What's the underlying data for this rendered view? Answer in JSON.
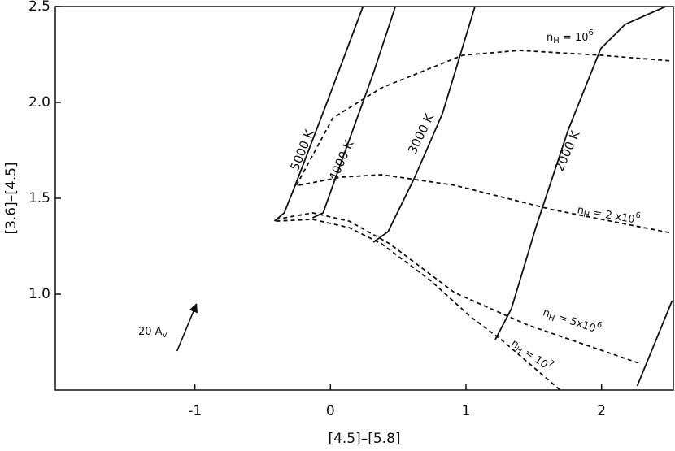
{
  "chart_data": {
    "type": "line",
    "x_label": "[4.5]–[5.8]",
    "y_label": "[3.6]–[4.5]",
    "xlim": [
      -2.03,
      2.53
    ],
    "ylim": [
      0.5,
      2.5
    ],
    "xticks": [
      -1,
      0,
      1,
      2
    ],
    "yticks": [
      {
        "value": 1,
        "label": "1.0"
      },
      1.5,
      {
        "value": 2,
        "label": "2.0"
      },
      2.5
    ],
    "series": [
      {
        "name": "5000 K",
        "color": "#111111",
        "dashed": false,
        "x": [
          -0.413,
          -0.341,
          -0.269,
          -0.012,
          0.24
        ],
        "values": [
          1.381,
          1.424,
          1.551,
          2.025,
          2.5
        ]
      },
      {
        "name": "4000 K",
        "color": "#111111",
        "dashed": false,
        "x": [
          -0.132,
          -0.054,
          0.078,
          0.317,
          0.479
        ],
        "values": [
          1.398,
          1.424,
          1.686,
          2.153,
          2.5
        ]
      },
      {
        "name": "3000 K",
        "color": "#111111",
        "dashed": false,
        "x": [
          0.317,
          0.425,
          0.617,
          0.826,
          1.066
        ],
        "values": [
          1.271,
          1.326,
          1.602,
          1.941,
          2.5
        ]
      },
      {
        "name": "2000 K",
        "color": "#111111",
        "dashed": false,
        "x": [
          1.216,
          1.335,
          1.515,
          1.754,
          1.994,
          2.174,
          2.473
        ],
        "values": [
          0.763,
          0.924,
          1.347,
          1.856,
          2.28,
          2.407,
          2.5
        ]
      },
      {
        "color": "#111111",
        "dashed": false,
        "x": [
          2.263,
          2.521
        ],
        "values": [
          0.521,
          0.966
        ]
      },
      {
        "name": [
          "n",
          "H",
          " = 10",
          "6"
        ],
        "color": "#111111",
        "dashed": true,
        "x": [
          -0.251,
          0.018,
          0.377,
          0.976,
          1.395,
          1.994,
          2.521
        ],
        "values": [
          1.568,
          1.919,
          2.076,
          2.246,
          2.271,
          2.246,
          2.216
        ]
      },
      {
        "name": [
          "n",
          "H",
          " = 2 x10",
          "6"
        ],
        "color": "#111111",
        "dashed": true,
        "x": [
          -0.234,
          0.078,
          0.377,
          0.916,
          1.635,
          2.521
        ],
        "values": [
          1.568,
          1.61,
          1.623,
          1.568,
          1.441,
          1.318
        ]
      },
      {
        "name": [
          "n",
          "H",
          " = 5x10",
          "6"
        ],
        "color": "#111111",
        "dashed": true,
        "x": [
          -0.401,
          -0.132,
          0.138,
          0.437,
          0.916,
          1.455,
          2.293
        ],
        "values": [
          1.39,
          1.424,
          1.381,
          1.263,
          1.008,
          0.839,
          0.636
        ]
      },
      {
        "name": [
          "n",
          "H",
          " = 10",
          "7"
        ],
        "color": "#111111",
        "dashed": true,
        "x": [
          -0.401,
          -0.132,
          0.138,
          0.377,
          0.737,
          1.036,
          1.275,
          1.695
        ],
        "values": [
          1.381,
          1.39,
          1.347,
          1.263,
          1.072,
          0.881,
          0.754,
          0.5
        ]
      }
    ],
    "arrow": {
      "label": [
        "20 A",
        "v"
      ],
      "x": [
        -1.132,
        -0.988
      ],
      "values": [
        0.703,
        0.949
      ]
    }
  }
}
